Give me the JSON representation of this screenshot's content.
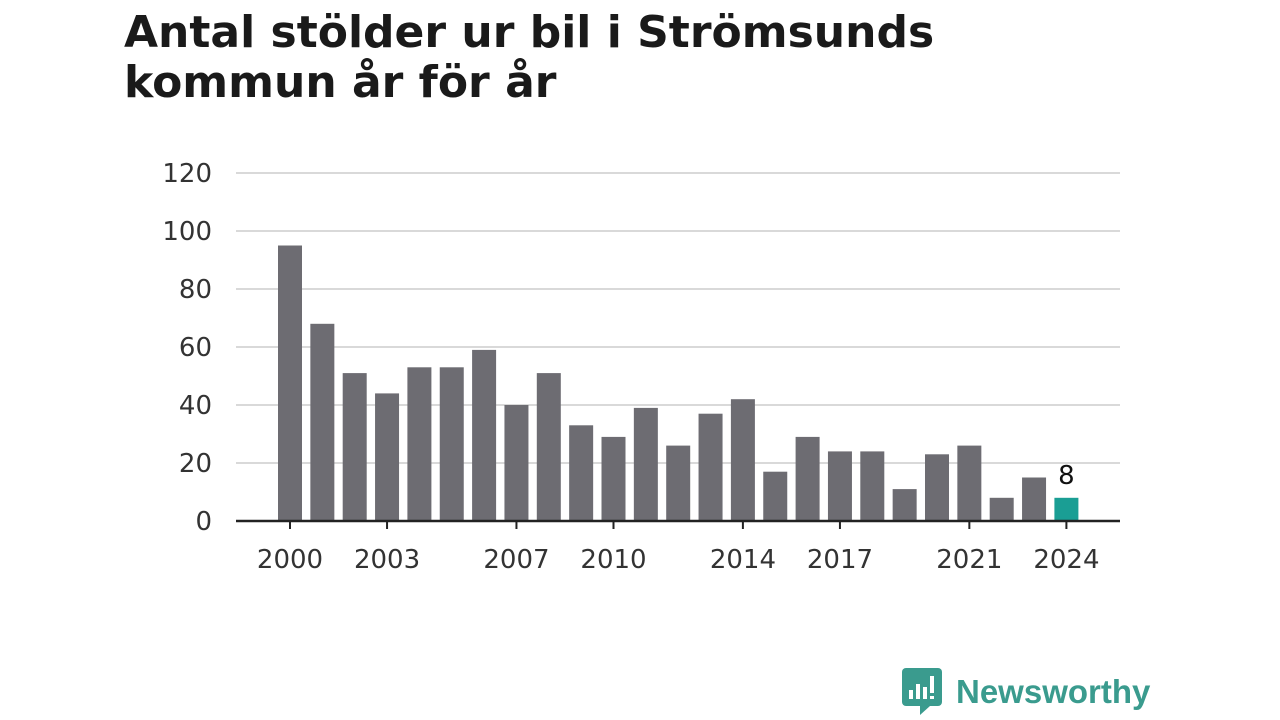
{
  "chart_data": {
    "type": "bar",
    "title": "Antal stölder ur bil i Strömsunds kommun år för år",
    "xlabel": "",
    "ylabel": "",
    "x": [
      2000,
      2001,
      2002,
      2003,
      2004,
      2005,
      2006,
      2007,
      2008,
      2009,
      2010,
      2011,
      2012,
      2013,
      2014,
      2015,
      2016,
      2017,
      2018,
      2019,
      2020,
      2021,
      2022,
      2023,
      2024
    ],
    "values": [
      95,
      68,
      51,
      44,
      53,
      53,
      59,
      40,
      51,
      33,
      29,
      39,
      26,
      37,
      42,
      17,
      29,
      24,
      24,
      11,
      23,
      26,
      8,
      15,
      8
    ],
    "x_tick_labels": [
      "2000",
      "2003",
      "2007",
      "2010",
      "2014",
      "2017",
      "2021",
      "2024"
    ],
    "y_ticks": [
      0,
      20,
      40,
      60,
      80,
      100,
      120
    ],
    "ylim": [
      0,
      120
    ],
    "grid": true,
    "colors": {
      "bar": "#6d6c72",
      "highlight": "#1a9e94",
      "grid": "#d9d9d9",
      "axis": "#222222"
    },
    "highlight_index": 24,
    "data_labels": [
      {
        "index": 24,
        "text": "8"
      }
    ]
  },
  "branding": {
    "name": "Newsworthy",
    "icon": "newsworthy-logo-icon",
    "color": "#3a9b8e"
  }
}
